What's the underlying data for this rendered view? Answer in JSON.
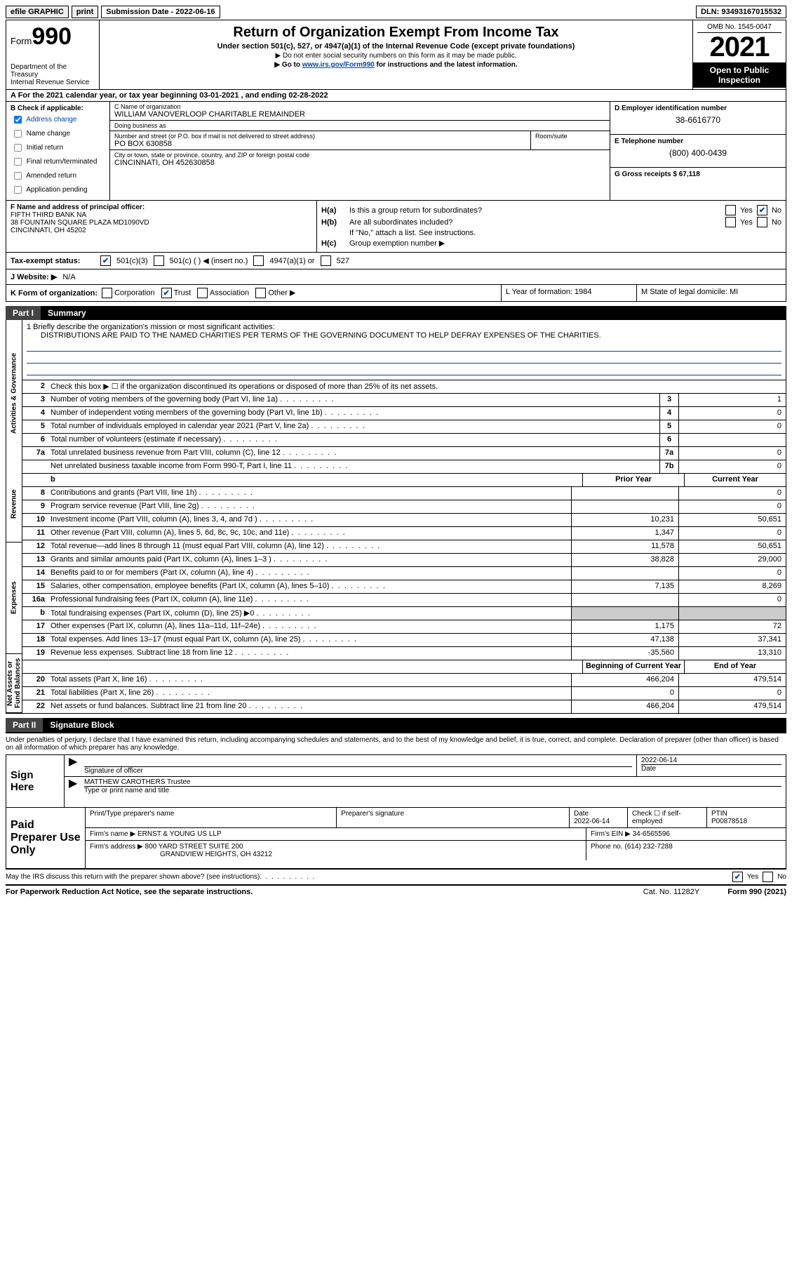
{
  "top": {
    "efile": "efile GRAPHIC",
    "print": "print",
    "subdate_lbl": "Submission Date - ",
    "subdate": "2022-06-16",
    "dln_lbl": "DLN: ",
    "dln": "93493167015532"
  },
  "hdr": {
    "form_word": "Form",
    "form_num": "990",
    "dept": "Department of the Treasury\nInternal Revenue Service",
    "title": "Return of Organization Exempt From Income Tax",
    "sub": "Under section 501(c), 527, or 4947(a)(1) of the Internal Revenue Code (except private foundations)",
    "note1": "▶ Do not enter social security numbers on this form as it may be made public.",
    "note2_pre": "▶ Go to ",
    "note2_link": "www.irs.gov/Form990",
    "note2_post": " for instructions and the latest information.",
    "omb": "OMB No. 1545-0047",
    "year": "2021",
    "otp": "Open to Public Inspection"
  },
  "rowA": {
    "text": "A For the 2021 calendar year, or tax year beginning 03-01-2021    , and ending 02-28-2022"
  },
  "B": {
    "lbl": "B Check if applicable:",
    "items": [
      {
        "label": "Address change",
        "checked": true
      },
      {
        "label": "Name change",
        "checked": false
      },
      {
        "label": "Initial return",
        "checked": false
      },
      {
        "label": "Final return/terminated",
        "checked": false
      },
      {
        "label": "Amended return",
        "checked": false
      },
      {
        "label": "Application pending",
        "checked": false
      }
    ]
  },
  "C": {
    "name_lbl": "C Name of organization",
    "name": "WILLIAM VANOVERLOOP CHARITABLE REMAINDER",
    "dba_lbl": "Doing business as",
    "dba": "",
    "addr_lbl": "Number and street (or P.O. box if mail is not delivered to street address)",
    "room_lbl": "Room/suite",
    "addr": "PO BOX 630858",
    "city_lbl": "City or town, state or province, country, and ZIP or foreign postal code",
    "city": "CINCINNATI, OH  452630858"
  },
  "DE": {
    "d_lbl": "D Employer identification number",
    "d_val": "38-6616770",
    "e_lbl": "E Telephone number",
    "e_val": "(800) 400-0439",
    "g_lbl": "G Gross receipts $ ",
    "g_val": "67,118"
  },
  "F": {
    "lbl": "F Name and address of principal officer:",
    "l1": "FIFTH THIRD BANK NA",
    "l2": "38 FOUNTAIN SQUARE PLAZA MD1090VD",
    "l3": "CINCINNATI, OH  45202"
  },
  "H": {
    "a": "Is this a group return for subordinates?",
    "b": "Are all subordinates included?",
    "b2": "If \"No,\" attach a list. See instructions.",
    "c": "Group exemption number ▶",
    "a_no": true
  },
  "I": {
    "lbl": "Tax-exempt status:",
    "o1": "501(c)(3)",
    "o2": "501(c) (  ) ◀ (insert no.)",
    "o3": "4947(a)(1) or",
    "o4": "527",
    "o1_chk": true
  },
  "J": {
    "lbl": "J   Website: ▶",
    "val": "N/A"
  },
  "K": {
    "lbl": "K Form of organization:",
    "opts": [
      "Corporation",
      "Trust",
      "Association",
      "Other ▶"
    ],
    "checked": 1
  },
  "L": {
    "text": "L Year of formation: 1984"
  },
  "M": {
    "text": "M State of legal domicile: MI"
  },
  "part1": {
    "label": "Part I",
    "title": "Summary"
  },
  "mission": {
    "lbl": "1   Briefly describe the organization's mission or most significant activities:",
    "text": "DISTRIBUTIONS ARE PAID TO THE NAMED CHARITIES PER TERMS OF THE GOVERNING DOCUMENT TO HELP DEFRAY EXPENSES OF THE CHARITIES."
  },
  "vtabs": [
    "Activities & Governance",
    "Revenue",
    "Expenses",
    "Net Assets or Fund Balances"
  ],
  "lines_top": [
    {
      "n": "2",
      "d": "Check this box ▶ ☐  if the organization discontinued its operations or disposed of more than 25% of its net assets."
    },
    {
      "n": "3",
      "d": "Number of voting members of the governing body (Part VI, line 1a)",
      "box": "3",
      "v": "1"
    },
    {
      "n": "4",
      "d": "Number of independent voting members of the governing body (Part VI, line 1b)",
      "box": "4",
      "v": "0"
    },
    {
      "n": "5",
      "d": "Total number of individuals employed in calendar year 2021 (Part V, line 2a)",
      "box": "5",
      "v": "0"
    },
    {
      "n": "6",
      "d": "Total number of volunteers (estimate if necessary)",
      "box": "6",
      "v": ""
    },
    {
      "n": "7a",
      "d": "Total unrelated business revenue from Part VIII, column (C), line 12",
      "box": "7a",
      "v": "0"
    },
    {
      "n": "",
      "d": "Net unrelated business taxable income from Form 990-T, Part I, line 11",
      "box": "7b",
      "v": "0"
    }
  ],
  "cols": {
    "prior": "Prior Year",
    "current": "Current Year",
    "boy": "Beginning of Current Year",
    "eoy": "End of Year"
  },
  "rev": [
    {
      "n": "8",
      "d": "Contributions and grants (Part VIII, line 1h)",
      "p": "",
      "c": "0"
    },
    {
      "n": "9",
      "d": "Program service revenue (Part VIII, line 2g)",
      "p": "",
      "c": "0"
    },
    {
      "n": "10",
      "d": "Investment income (Part VIII, column (A), lines 3, 4, and 7d )",
      "p": "10,231",
      "c": "50,651"
    },
    {
      "n": "11",
      "d": "Other revenue (Part VIII, column (A), lines 5, 6d, 8c, 9c, 10c, and 11e)",
      "p": "1,347",
      "c": "0"
    },
    {
      "n": "12",
      "d": "Total revenue—add lines 8 through 11 (must equal Part VIII, column (A), line 12)",
      "p": "11,578",
      "c": "50,651"
    }
  ],
  "exp": [
    {
      "n": "13",
      "d": "Grants and similar amounts paid (Part IX, column (A), lines 1–3 )",
      "p": "38,828",
      "c": "29,000"
    },
    {
      "n": "14",
      "d": "Benefits paid to or for members (Part IX, column (A), line 4)",
      "p": "",
      "c": "0"
    },
    {
      "n": "15",
      "d": "Salaries, other compensation, employee benefits (Part IX, column (A), lines 5–10)",
      "p": "7,135",
      "c": "8,269"
    },
    {
      "n": "16a",
      "d": "Professional fundraising fees (Part IX, column (A), line 11e)",
      "p": "",
      "c": "0"
    },
    {
      "n": "b",
      "d": "Total fundraising expenses (Part IX, column (D), line 25) ▶0",
      "p": "grey",
      "c": "grey"
    },
    {
      "n": "17",
      "d": "Other expenses (Part IX, column (A), lines 11a–11d, 11f–24e)",
      "p": "1,175",
      "c": "72"
    },
    {
      "n": "18",
      "d": "Total expenses. Add lines 13–17 (must equal Part IX, column (A), line 25)",
      "p": "47,138",
      "c": "37,341"
    },
    {
      "n": "19",
      "d": "Revenue less expenses. Subtract line 18 from line 12",
      "p": "-35,560",
      "c": "13,310"
    }
  ],
  "net": [
    {
      "n": "20",
      "d": "Total assets (Part X, line 16)",
      "p": "466,204",
      "c": "479,514"
    },
    {
      "n": "21",
      "d": "Total liabilities (Part X, line 26)",
      "p": "0",
      "c": "0"
    },
    {
      "n": "22",
      "d": "Net assets or fund balances. Subtract line 21 from line 20",
      "p": "466,204",
      "c": "479,514"
    }
  ],
  "part2": {
    "label": "Part II",
    "title": "Signature Block"
  },
  "sig": {
    "decl": "Under penalties of perjury, I declare that I have examined this return, including accompanying schedules and statements, and to the best of my knowledge and belief, it is true, correct, and complete. Declaration of preparer (other than officer) is based on all information of which preparer has any knowledge.",
    "here": "Sign Here",
    "sigoff": "Signature of officer",
    "date": "2022-06-14",
    "date_lbl": "Date",
    "name": "MATTHEW CAROTHERS  Trustee",
    "name_lbl": "Type or print name and title"
  },
  "prep": {
    "lbl": "Paid Preparer Use Only",
    "r1": {
      "c1": "Print/Type preparer's name",
      "c2": "Preparer's signature",
      "c3_lbl": "Date",
      "c3": "2022-06-14",
      "c4": "Check ☐ if self-employed",
      "c5_lbl": "PTIN",
      "c5": "P00878518"
    },
    "r2": {
      "c1": "Firm's name    ▶",
      "c1v": "ERNST & YOUNG US LLP",
      "c2": "Firm's EIN ▶ 34-6565596"
    },
    "r3": {
      "c1": "Firm's address ▶",
      "c1v": "800 YARD STREET SUITE 200",
      "c1v2": "GRANDVIEW HEIGHTS, OH  43212",
      "c2": "Phone no. (614) 232-7288"
    }
  },
  "discuss": {
    "text": "May the IRS discuss this return with the preparer shown above? (see instructions)",
    "yes": true
  },
  "foot": {
    "pra": "For Paperwork Reduction Act Notice, see the separate instructions.",
    "cat": "Cat. No. 11282Y",
    "form": "Form 990 (2021)"
  }
}
